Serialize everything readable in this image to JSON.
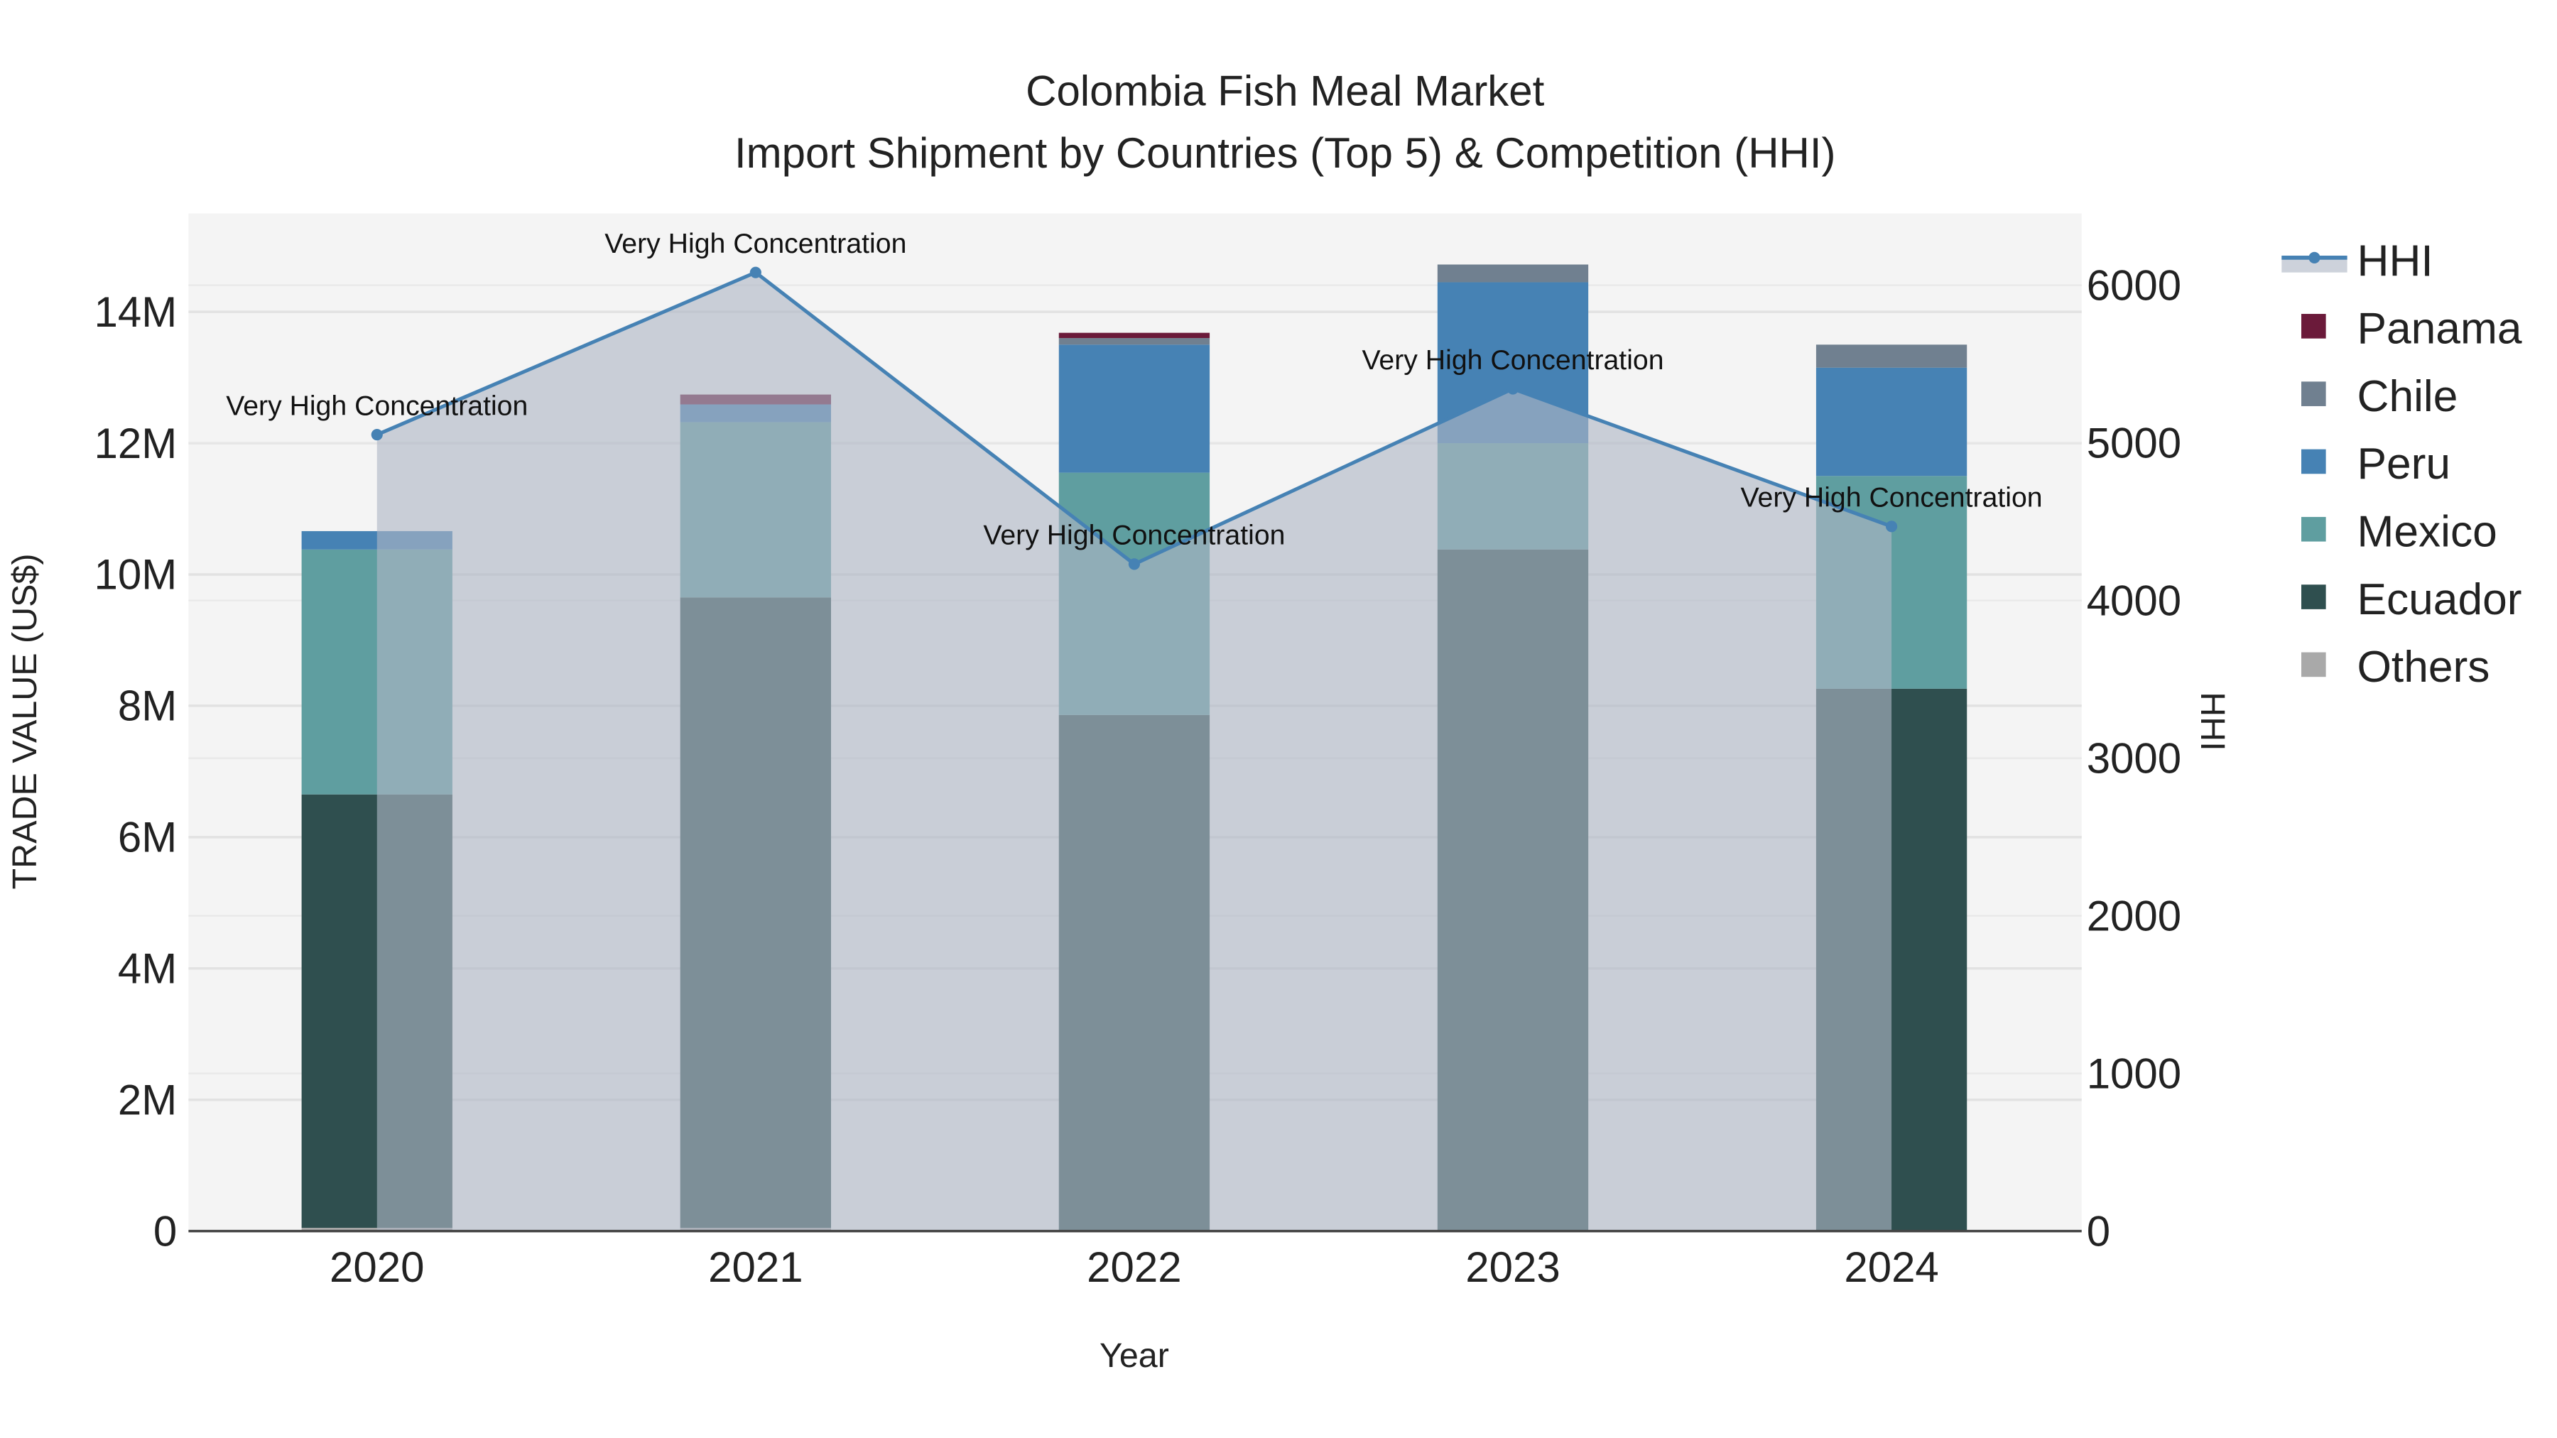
{
  "chart_data": {
    "type": "bar",
    "title": "Colombia Fish Meal Market",
    "subtitle": "Import Shipment by Countries (Top 5) & Competition (HHI)",
    "xlabel": "Year",
    "ylabel": "TRADE VALUE (US$)",
    "y2label": "HHI",
    "categories": [
      "2020",
      "2021",
      "2022",
      "2023",
      "2024"
    ],
    "ylim": [
      0,
      15.5
    ],
    "y_ticks": [
      0,
      2,
      4,
      6,
      8,
      10,
      12,
      14
    ],
    "y_tick_labels": [
      "0",
      "2M",
      "4M",
      "6M",
      "8M",
      "10M",
      "12M",
      "14M"
    ],
    "y2lim": [
      0,
      6450
    ],
    "y2_ticks": [
      0,
      1000,
      2000,
      3000,
      4000,
      5000,
      6000
    ],
    "y2_tick_labels": [
      "0",
      "1000",
      "2000",
      "3000",
      "4000",
      "5000",
      "6000"
    ],
    "stacked": true,
    "value_unit": "million US$",
    "series": [
      {
        "name": "Others",
        "color": "#a9a9a9",
        "values": [
          0.05,
          0.05,
          0,
          0,
          0
        ]
      },
      {
        "name": "Ecuador",
        "color": "#2f4f4f",
        "values": [
          6.6,
          9.6,
          7.86,
          10.38,
          8.26
        ]
      },
      {
        "name": "Mexico",
        "color": "#5f9ea0",
        "values": [
          3.73,
          2.67,
          3.69,
          1.62,
          3.24
        ]
      },
      {
        "name": "Peru",
        "color": "#4682b4",
        "values": [
          0.28,
          0.27,
          1.95,
          2.45,
          1.65
        ]
      },
      {
        "name": "Chile",
        "color": "#708090",
        "values": [
          0,
          0,
          0.1,
          0.27,
          0.35
        ]
      },
      {
        "name": "Panama",
        "color": "#6b1a3a",
        "values": [
          0,
          0.15,
          0.08,
          0,
          0
        ]
      }
    ],
    "hhi": {
      "name": "HHI",
      "color": "#4682b4",
      "values": [
        5052,
        6081,
        4231,
        5343,
        4470
      ],
      "annotations": [
        "Very High Concentration",
        "Very High Concentration",
        "Very High Concentration",
        "Very High Concentration",
        "Very High Concentration"
      ]
    },
    "legend": {
      "placement": "right",
      "entries": [
        "HHI",
        "Panama",
        "Chile",
        "Peru",
        "Mexico",
        "Ecuador",
        "Others"
      ]
    },
    "grid": true
  }
}
